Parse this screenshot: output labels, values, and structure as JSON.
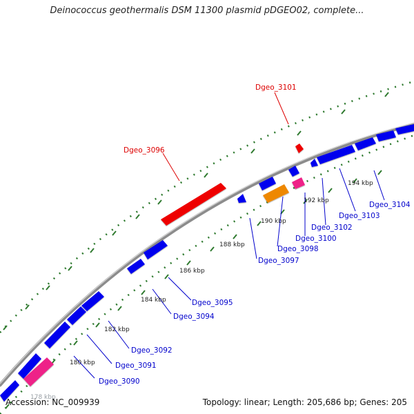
{
  "title": "Deinococcus geothermalis DSM 11300 plasmid pDGEO02, complete...",
  "footer": {
    "accession": "Accession: NC_009939",
    "summary": "Topology: linear; Length: 205,686 bp; Genes: 205"
  },
  "colors": {
    "backbone": "#8c8c8c",
    "tick_green": "#2f7a2f",
    "gene_blue": "#0000ee",
    "gene_red": "#ee0000",
    "gene_pink": "#ee2288",
    "gene_orange": "#ee8800",
    "label_blue": "#0000cc",
    "label_red": "#dd0000"
  },
  "kbp_labels": [
    "178 kbp",
    "180 kbp",
    "182 kbp",
    "184 kbp",
    "186 kbp",
    "188 kbp",
    "190 kbp",
    "192 kbp",
    "194 kbp"
  ],
  "gene_labels": [
    {
      "text": "Dgeo_3090",
      "color": "blue"
    },
    {
      "text": "Dgeo_3091",
      "color": "blue"
    },
    {
      "text": "Dgeo_3092",
      "color": "blue"
    },
    {
      "text": "Dgeo_3094",
      "color": "blue"
    },
    {
      "text": "Dgeo_3095",
      "color": "blue"
    },
    {
      "text": "Dgeo_3097",
      "color": "blue"
    },
    {
      "text": "Dgeo_3098",
      "color": "blue"
    },
    {
      "text": "Dgeo_3100",
      "color": "blue"
    },
    {
      "text": "Dgeo_3102",
      "color": "blue"
    },
    {
      "text": "Dgeo_3103",
      "color": "blue"
    },
    {
      "text": "Dgeo_3104",
      "color": "blue"
    },
    {
      "text": "Dgeo_3096",
      "color": "red"
    },
    {
      "text": "Dgeo_3101",
      "color": "red"
    }
  ]
}
